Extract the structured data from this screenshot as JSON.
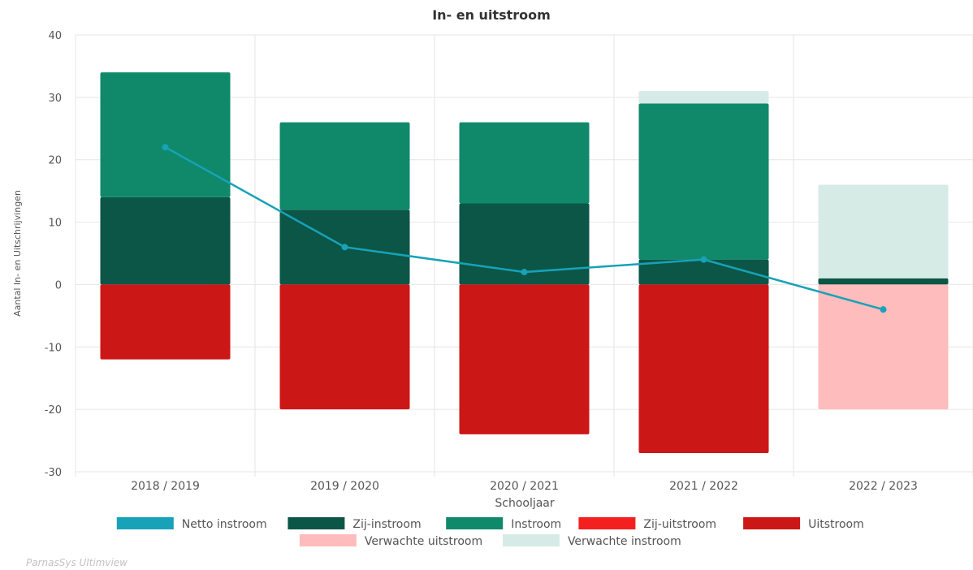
{
  "credit": "ParnasSys Ultimview",
  "chart_data": {
    "type": "bar",
    "title": "In- en uitstroom",
    "xlabel": "Schooljaar",
    "ylabel": "Aantal In- en Uitschrijvingen",
    "ylim": [
      -30,
      40
    ],
    "yticks": [
      40,
      30,
      20,
      10,
      0,
      -10,
      -20,
      -30
    ],
    "grid": true,
    "legend_position": "bottom",
    "categories": [
      "2018 / 2019",
      "2019 / 2020",
      "2020 / 2021",
      "2021 / 2022",
      "2022 / 2023"
    ],
    "series": [
      {
        "name": "Netto instroom",
        "kind": "line",
        "color": "#17a2b8",
        "values": [
          22,
          6,
          2,
          4,
          -4
        ]
      },
      {
        "name": "Zij-instroom",
        "kind": "bar",
        "color": "#0b5647",
        "values": [
          14,
          12,
          13,
          4,
          1
        ]
      },
      {
        "name": "Instroom",
        "kind": "bar",
        "color": "#10896b",
        "values": [
          20,
          14,
          13,
          25,
          0
        ]
      },
      {
        "name": "Zij-uitstroom",
        "kind": "bar",
        "color": "#f41f1f",
        "values": [
          0,
          0,
          0,
          0,
          0
        ]
      },
      {
        "name": "Uitstroom",
        "kind": "bar",
        "color": "#cc1717",
        "values": [
          -12,
          -20,
          -24,
          -27,
          0
        ]
      },
      {
        "name": "Verwachte uitstroom",
        "kind": "bar",
        "color": "#ffbcbc",
        "values": [
          0,
          0,
          0,
          0,
          -20
        ]
      },
      {
        "name": "Verwachte instroom",
        "kind": "bar",
        "color": "#d7ebe6",
        "values": [
          0,
          0,
          0,
          2,
          15
        ]
      }
    ]
  }
}
